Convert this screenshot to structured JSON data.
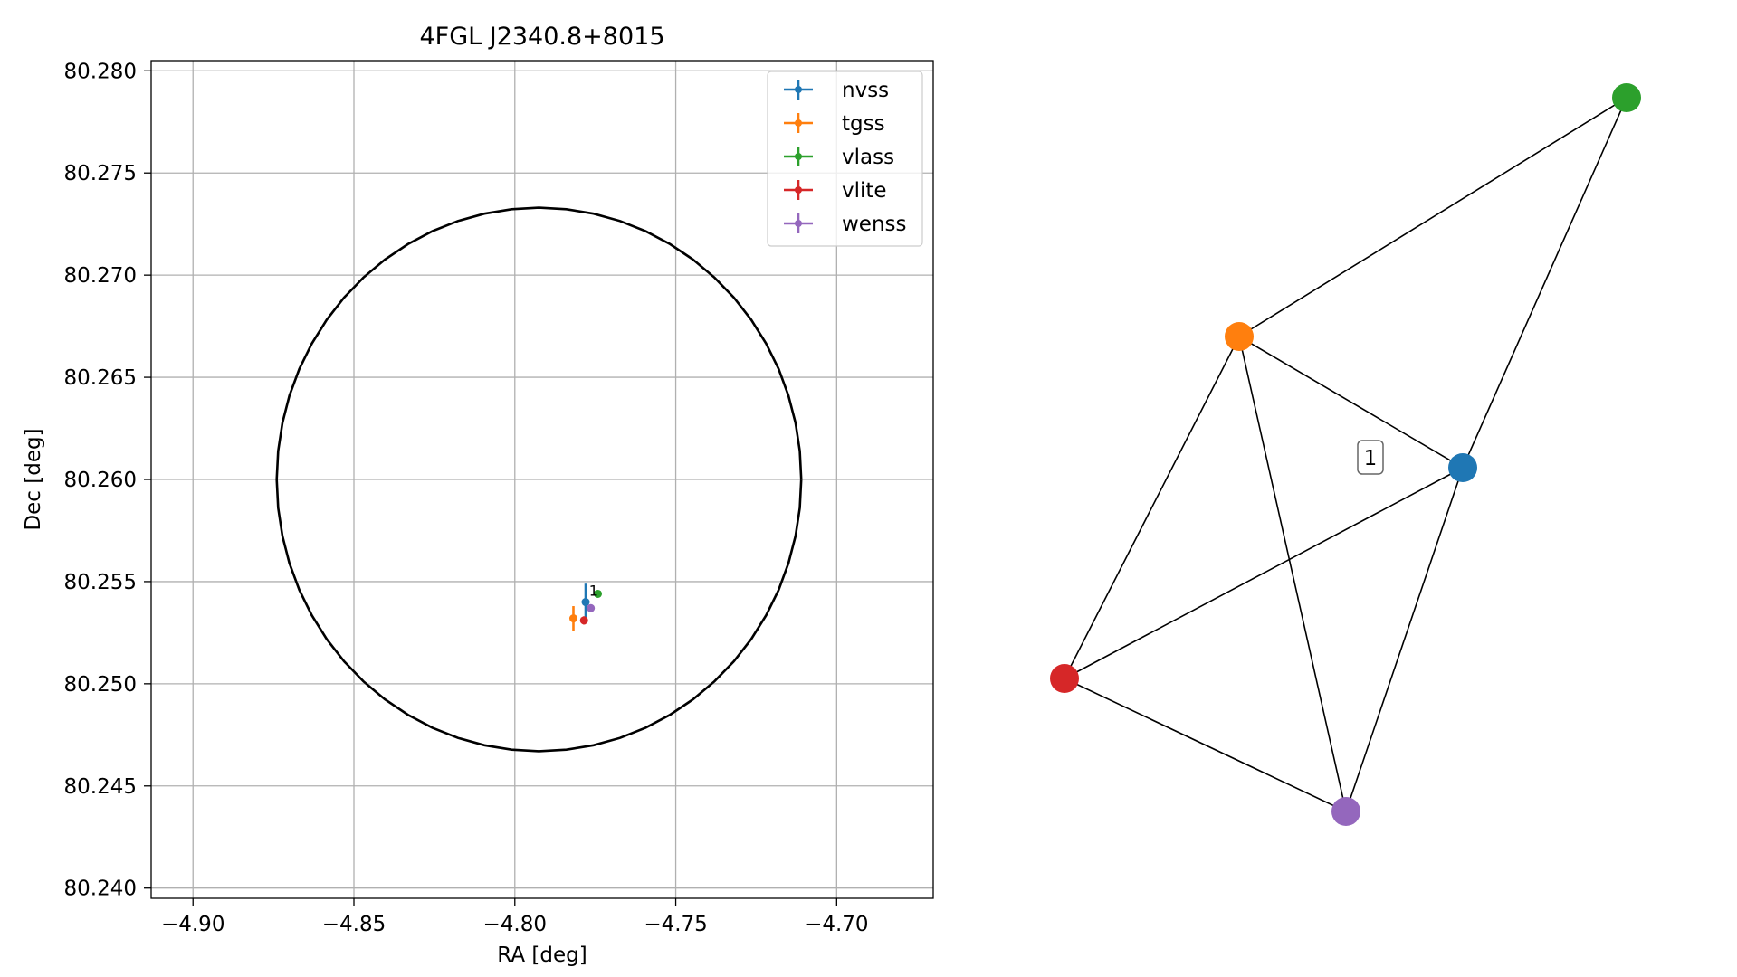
{
  "chart_data": [
    {
      "type": "scatter",
      "title": "4FGL J2340.8+8015",
      "xlabel": "RA [deg]",
      "ylabel": "Dec [deg]",
      "xlim": [
        -4.913,
        -4.67
      ],
      "ylim": [
        80.2395,
        80.2805
      ],
      "xticks": [
        -4.9,
        -4.85,
        -4.8,
        -4.75,
        -4.7
      ],
      "xtick_labels": [
        "−4.90",
        "−4.85",
        "−4.80",
        "−4.75",
        "−4.70"
      ],
      "yticks": [
        80.24,
        80.245,
        80.25,
        80.255,
        80.26,
        80.265,
        80.27,
        80.275,
        80.28
      ],
      "ytick_labels": [
        "80.240",
        "80.245",
        "80.250",
        "80.255",
        "80.260",
        "80.265",
        "80.270",
        "80.275",
        "80.280"
      ],
      "grid": true,
      "legend_position": "upper-right",
      "ellipse": {
        "center": [
          -4.7925,
          80.26
        ],
        "ra_radius": 0.0815,
        "dec_radius": 0.0133,
        "color": "#000000"
      },
      "series": [
        {
          "name": "nvss",
          "color": "#1f77b4",
          "x": -4.778,
          "y": 80.254,
          "xerr": 0.0003,
          "yerr": 0.0009
        },
        {
          "name": "tgss",
          "color": "#ff7f0e",
          "x": -4.7818,
          "y": 80.2532,
          "xerr": 0.0003,
          "yerr": 0.0006
        },
        {
          "name": "vlass",
          "color": "#2ca02c",
          "x": -4.7742,
          "y": 80.2544,
          "xerr": 0.0001,
          "yerr": 0.0001
        },
        {
          "name": "vlite",
          "color": "#d62728",
          "x": -4.7785,
          "y": 80.2531,
          "xerr": 0.0002,
          "yerr": 0.0002
        },
        {
          "name": "wenss",
          "color": "#9467bd",
          "x": -4.7764,
          "y": 80.2537,
          "xerr": 0.0001,
          "yerr": 0.0001
        }
      ],
      "annotations": [
        {
          "text": "1",
          "x": -4.7755,
          "y": 80.2544
        }
      ]
    },
    {
      "type": "network",
      "node_colors": [
        "#1f77b4",
        "#ff7f0e",
        "#2ca02c",
        "#d62728",
        "#9467bd"
      ],
      "edges": [
        [
          1,
          2
        ],
        [
          0,
          2
        ],
        [
          0,
          1
        ],
        [
          0,
          3
        ],
        [
          0,
          4
        ],
        [
          1,
          3
        ],
        [
          1,
          4
        ],
        [
          3,
          4
        ]
      ],
      "cluster_label": "1"
    }
  ]
}
